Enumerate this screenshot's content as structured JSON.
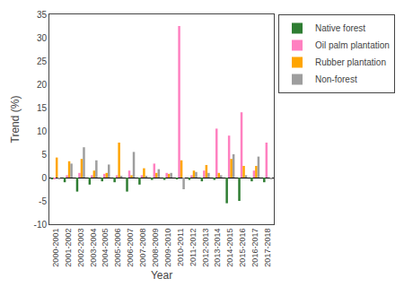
{
  "chart_data": {
    "type": "bar",
    "xlabel": "Year",
    "ylabel": "Trend (%)",
    "categories": [
      "2000-2001",
      "2001-2002",
      "2002-2003",
      "2003-2004",
      "2004-2005",
      "2005-2006",
      "2006-2007",
      "2007-2008",
      "2008-2009",
      "2009-2010",
      "2010-2011",
      "2011-2012",
      "2012-2013",
      "2013-2014",
      "2014-2015",
      "2015-2016",
      "2016-2017",
      "2017-2018"
    ],
    "series": [
      {
        "name": "Native forest",
        "color": "#2e7d32",
        "values": [
          -0.3,
          -1.0,
          -3.0,
          -1.5,
          -0.8,
          -1.0,
          -3.0,
          -1.5,
          -0.5,
          -0.5,
          -0.3,
          -0.5,
          -0.8,
          -0.5,
          -5.5,
          -5.0,
          -0.8,
          -1.0
        ]
      },
      {
        "name": "Oil palm plantation",
        "color": "#ff80c0",
        "values": [
          -0.2,
          0.5,
          1.0,
          0.5,
          0.8,
          0.5,
          1.5,
          0.5,
          3.0,
          1.0,
          32.5,
          0.5,
          1.5,
          10.5,
          9.0,
          14.0,
          1.5,
          7.5
        ]
      },
      {
        "name": "Rubber plantation",
        "color": "#ffa500",
        "values": [
          4.3,
          3.5,
          4.0,
          1.5,
          1.0,
          7.5,
          0.5,
          2.0,
          1.0,
          0.8,
          3.7,
          1.5,
          2.7,
          1.0,
          4.0,
          2.5,
          2.5,
          0.0
        ]
      },
      {
        "name": "Non-forest",
        "color": "#9e9e9e",
        "values": [
          -0.2,
          3.0,
          6.5,
          3.7,
          2.8,
          0.2,
          5.5,
          0.2,
          1.8,
          1.0,
          -2.5,
          1.2,
          1.0,
          0.5,
          5.0,
          0.5,
          4.5,
          -0.3
        ]
      }
    ],
    "ylim": [
      -10,
      35
    ],
    "yticks": [
      -10,
      -5,
      0,
      5,
      10,
      15,
      20,
      25,
      30,
      35
    ],
    "grid": false,
    "legend": "upper right"
  }
}
